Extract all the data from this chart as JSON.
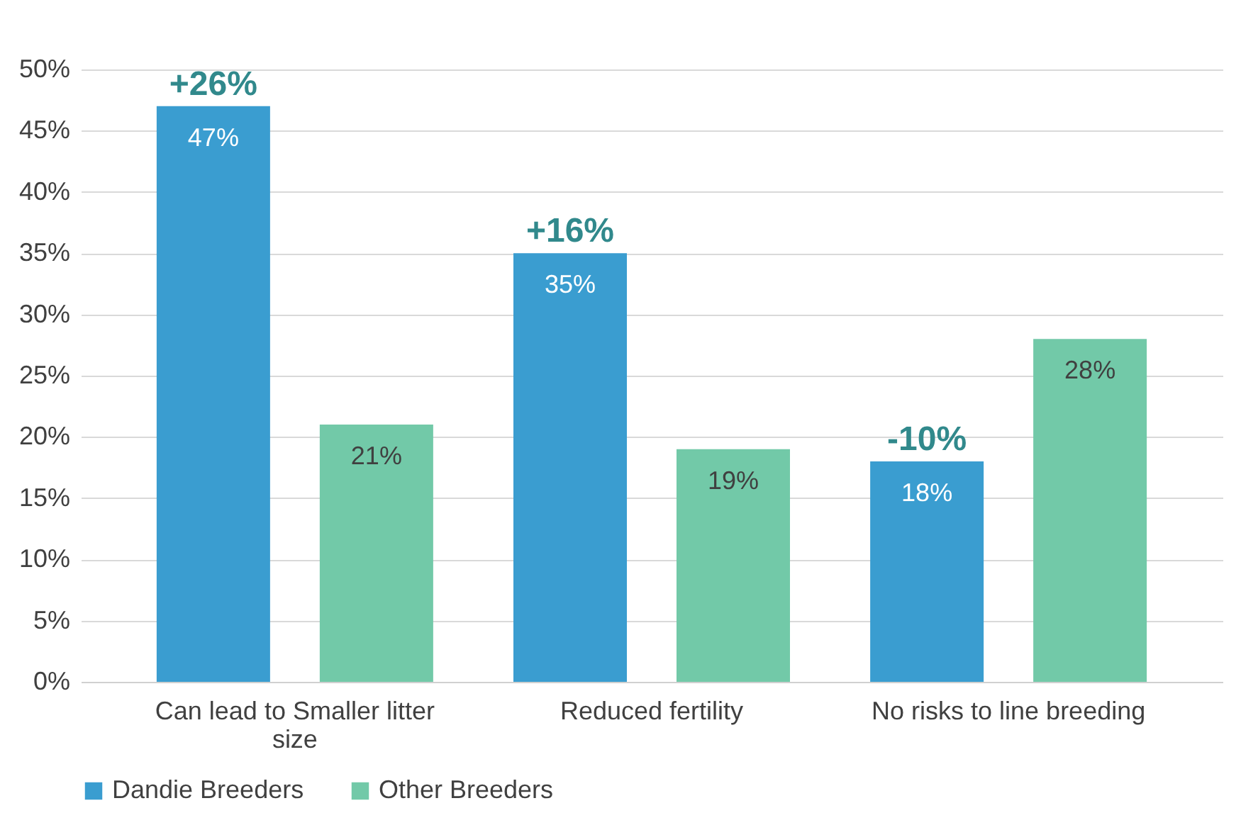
{
  "chart_data": {
    "type": "bar",
    "categories": [
      "Can lead to Smaller litter size",
      "Reduced fertility",
      "No risks  to line breeding"
    ],
    "series": [
      {
        "name": "Dandie Breeders",
        "color": "#3a9dd0",
        "values": [
          47,
          35,
          18
        ],
        "value_labels": [
          "47%",
          "35%",
          "18%"
        ]
      },
      {
        "name": "Other Breeders",
        "color": "#72c9a8",
        "values": [
          21,
          19,
          28
        ],
        "value_labels": [
          "21%",
          "19%",
          "28%"
        ]
      }
    ],
    "ylim": [
      0,
      50
    ],
    "yticks": [
      {
        "value": 0,
        "label": "0%"
      },
      {
        "value": 5,
        "label": "5%"
      },
      {
        "value": 10,
        "label": "10%"
      },
      {
        "value": 15,
        "label": "15%"
      },
      {
        "value": 20,
        "label": "20%"
      },
      {
        "value": 25,
        "label": "25%"
      },
      {
        "value": 30,
        "label": "30%"
      },
      {
        "value": 35,
        "label": "35%"
      },
      {
        "value": 40,
        "label": "40%"
      },
      {
        "value": 45,
        "label": "45%"
      },
      {
        "value": 50,
        "label": "50%"
      }
    ],
    "annotations": [
      "+26%",
      "+16%",
      "-10%"
    ],
    "grid": "y",
    "legend": "bottom"
  }
}
